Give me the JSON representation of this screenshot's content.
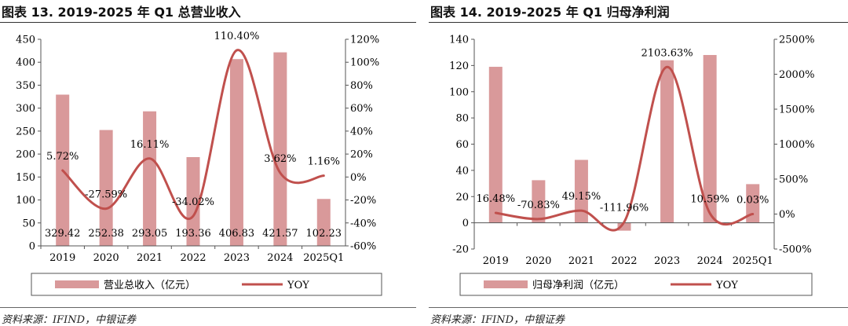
{
  "colors": {
    "bar": "#d9999a",
    "line": "#c0504d",
    "axis": "#555555"
  },
  "chart_data": [
    {
      "type": "bar",
      "title": "图表 13. 2019-2025 年 Q1 总营业收入",
      "source": "资料来源：IFIND，中银证券",
      "categories": [
        "2019",
        "2020",
        "2021",
        "2022",
        "2023",
        "2024",
        "2025Q1"
      ],
      "series": [
        {
          "name": "营业总收入（亿元）",
          "type": "bar",
          "axis": "left",
          "values": [
            329.42,
            252.38,
            293.05,
            193.36,
            406.83,
            421.57,
            102.23
          ],
          "labels": [
            "329.42",
            "252.38",
            "293.05",
            "193.36",
            "406.83",
            "421.57",
            "102.23"
          ]
        },
        {
          "name": "YOY",
          "type": "line",
          "axis": "right",
          "values": [
            5.72,
            -27.59,
            16.11,
            -34.02,
            110.4,
            3.62,
            1.16
          ],
          "labels": [
            "5.72%",
            "-27.59%",
            "16.11%",
            "-34.02%",
            "110.40%",
            "3.62%",
            "1.16%"
          ]
        }
      ],
      "ylim": [
        0,
        450
      ],
      "yticks": [
        "0",
        "50",
        "100",
        "150",
        "200",
        "250",
        "300",
        "350",
        "400",
        "450"
      ],
      "y2lim": [
        -60,
        120
      ],
      "y2ticks": [
        "-60%",
        "-40%",
        "-20%",
        "0%",
        "20%",
        "40%",
        "60%",
        "80%",
        "100%",
        "120%"
      ],
      "grid": false,
      "legend": "bottom"
    },
    {
      "type": "bar",
      "title": "图表 14. 2019-2025 年 Q1 归母净利润",
      "source": "资料来源：IFIND，中银证券",
      "categories": [
        "2019",
        "2020",
        "2021",
        "2022",
        "2023",
        "2024",
        "2025Q1"
      ],
      "series": [
        {
          "name": "归母净利润（亿元）",
          "type": "bar",
          "axis": "left",
          "values": [
            119,
            32.5,
            48,
            -6,
            124,
            128,
            29.5
          ]
        },
        {
          "name": "YOY",
          "type": "line",
          "axis": "right",
          "values": [
            16.48,
            -70.83,
            49.15,
            -111.96,
            2103.63,
            10.59,
            0.03
          ],
          "labels": [
            "16.48%",
            "-70.83%",
            "49.15%",
            "-111.96%",
            "2103.63%",
            "10.59%",
            "0.03%"
          ]
        }
      ],
      "ylim": [
        -20,
        140
      ],
      "yticks": [
        "-20",
        "0",
        "20",
        "40",
        "60",
        "80",
        "100",
        "120",
        "140"
      ],
      "y2lim": [
        -500,
        2500
      ],
      "y2ticks": [
        "-500%",
        "0%",
        "500%",
        "1000%",
        "1500%",
        "2000%",
        "2500%"
      ],
      "grid": false,
      "legend": "bottom"
    }
  ]
}
